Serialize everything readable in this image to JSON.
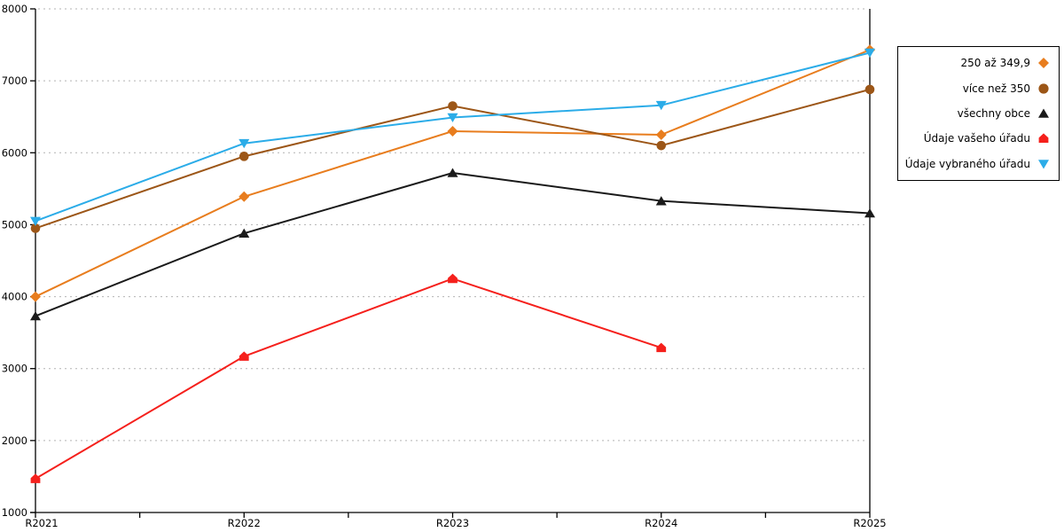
{
  "chart_data": {
    "type": "line",
    "categories": [
      "R2021",
      "R2022",
      "R2023",
      "R2024",
      "R2025"
    ],
    "series": [
      {
        "name": "250 až 349,9",
        "marker": "diamond",
        "color": "#E87D1E",
        "values": [
          4000,
          5390,
          6300,
          6250,
          7430
        ]
      },
      {
        "name": "více než 350",
        "marker": "circle",
        "color": "#9C5617",
        "values": [
          4950,
          5950,
          6650,
          6100,
          6880
        ]
      },
      {
        "name": "všechny obce",
        "marker": "triangle-up",
        "color": "#1A1A1A",
        "values": [
          3730,
          4880,
          5720,
          5330,
          5160
        ]
      },
      {
        "name": "Údaje vašeho úřadu",
        "marker": "pentagon",
        "color": "#F5201C",
        "values": [
          1470,
          3170,
          4250,
          3290,
          null
        ]
      },
      {
        "name": "Údaje vybraného úřadu",
        "marker": "triangle-down",
        "color": "#2BACE8",
        "values": [
          5050,
          6130,
          6490,
          6660,
          7390
        ]
      }
    ],
    "ylim": [
      1000,
      8000
    ],
    "yticks": [
      1000,
      2000,
      3000,
      4000,
      5000,
      6000,
      7000,
      8000
    ],
    "xlabel": "",
    "ylabel": "",
    "grid": "horizontal-dashed",
    "legend_position": "right"
  },
  "style": {
    "axis_color": "#000000",
    "grid_color": "#B3B3B3",
    "background": "#FFFFFF",
    "legend_border": "#000000",
    "tick_label_color": "#000000"
  }
}
